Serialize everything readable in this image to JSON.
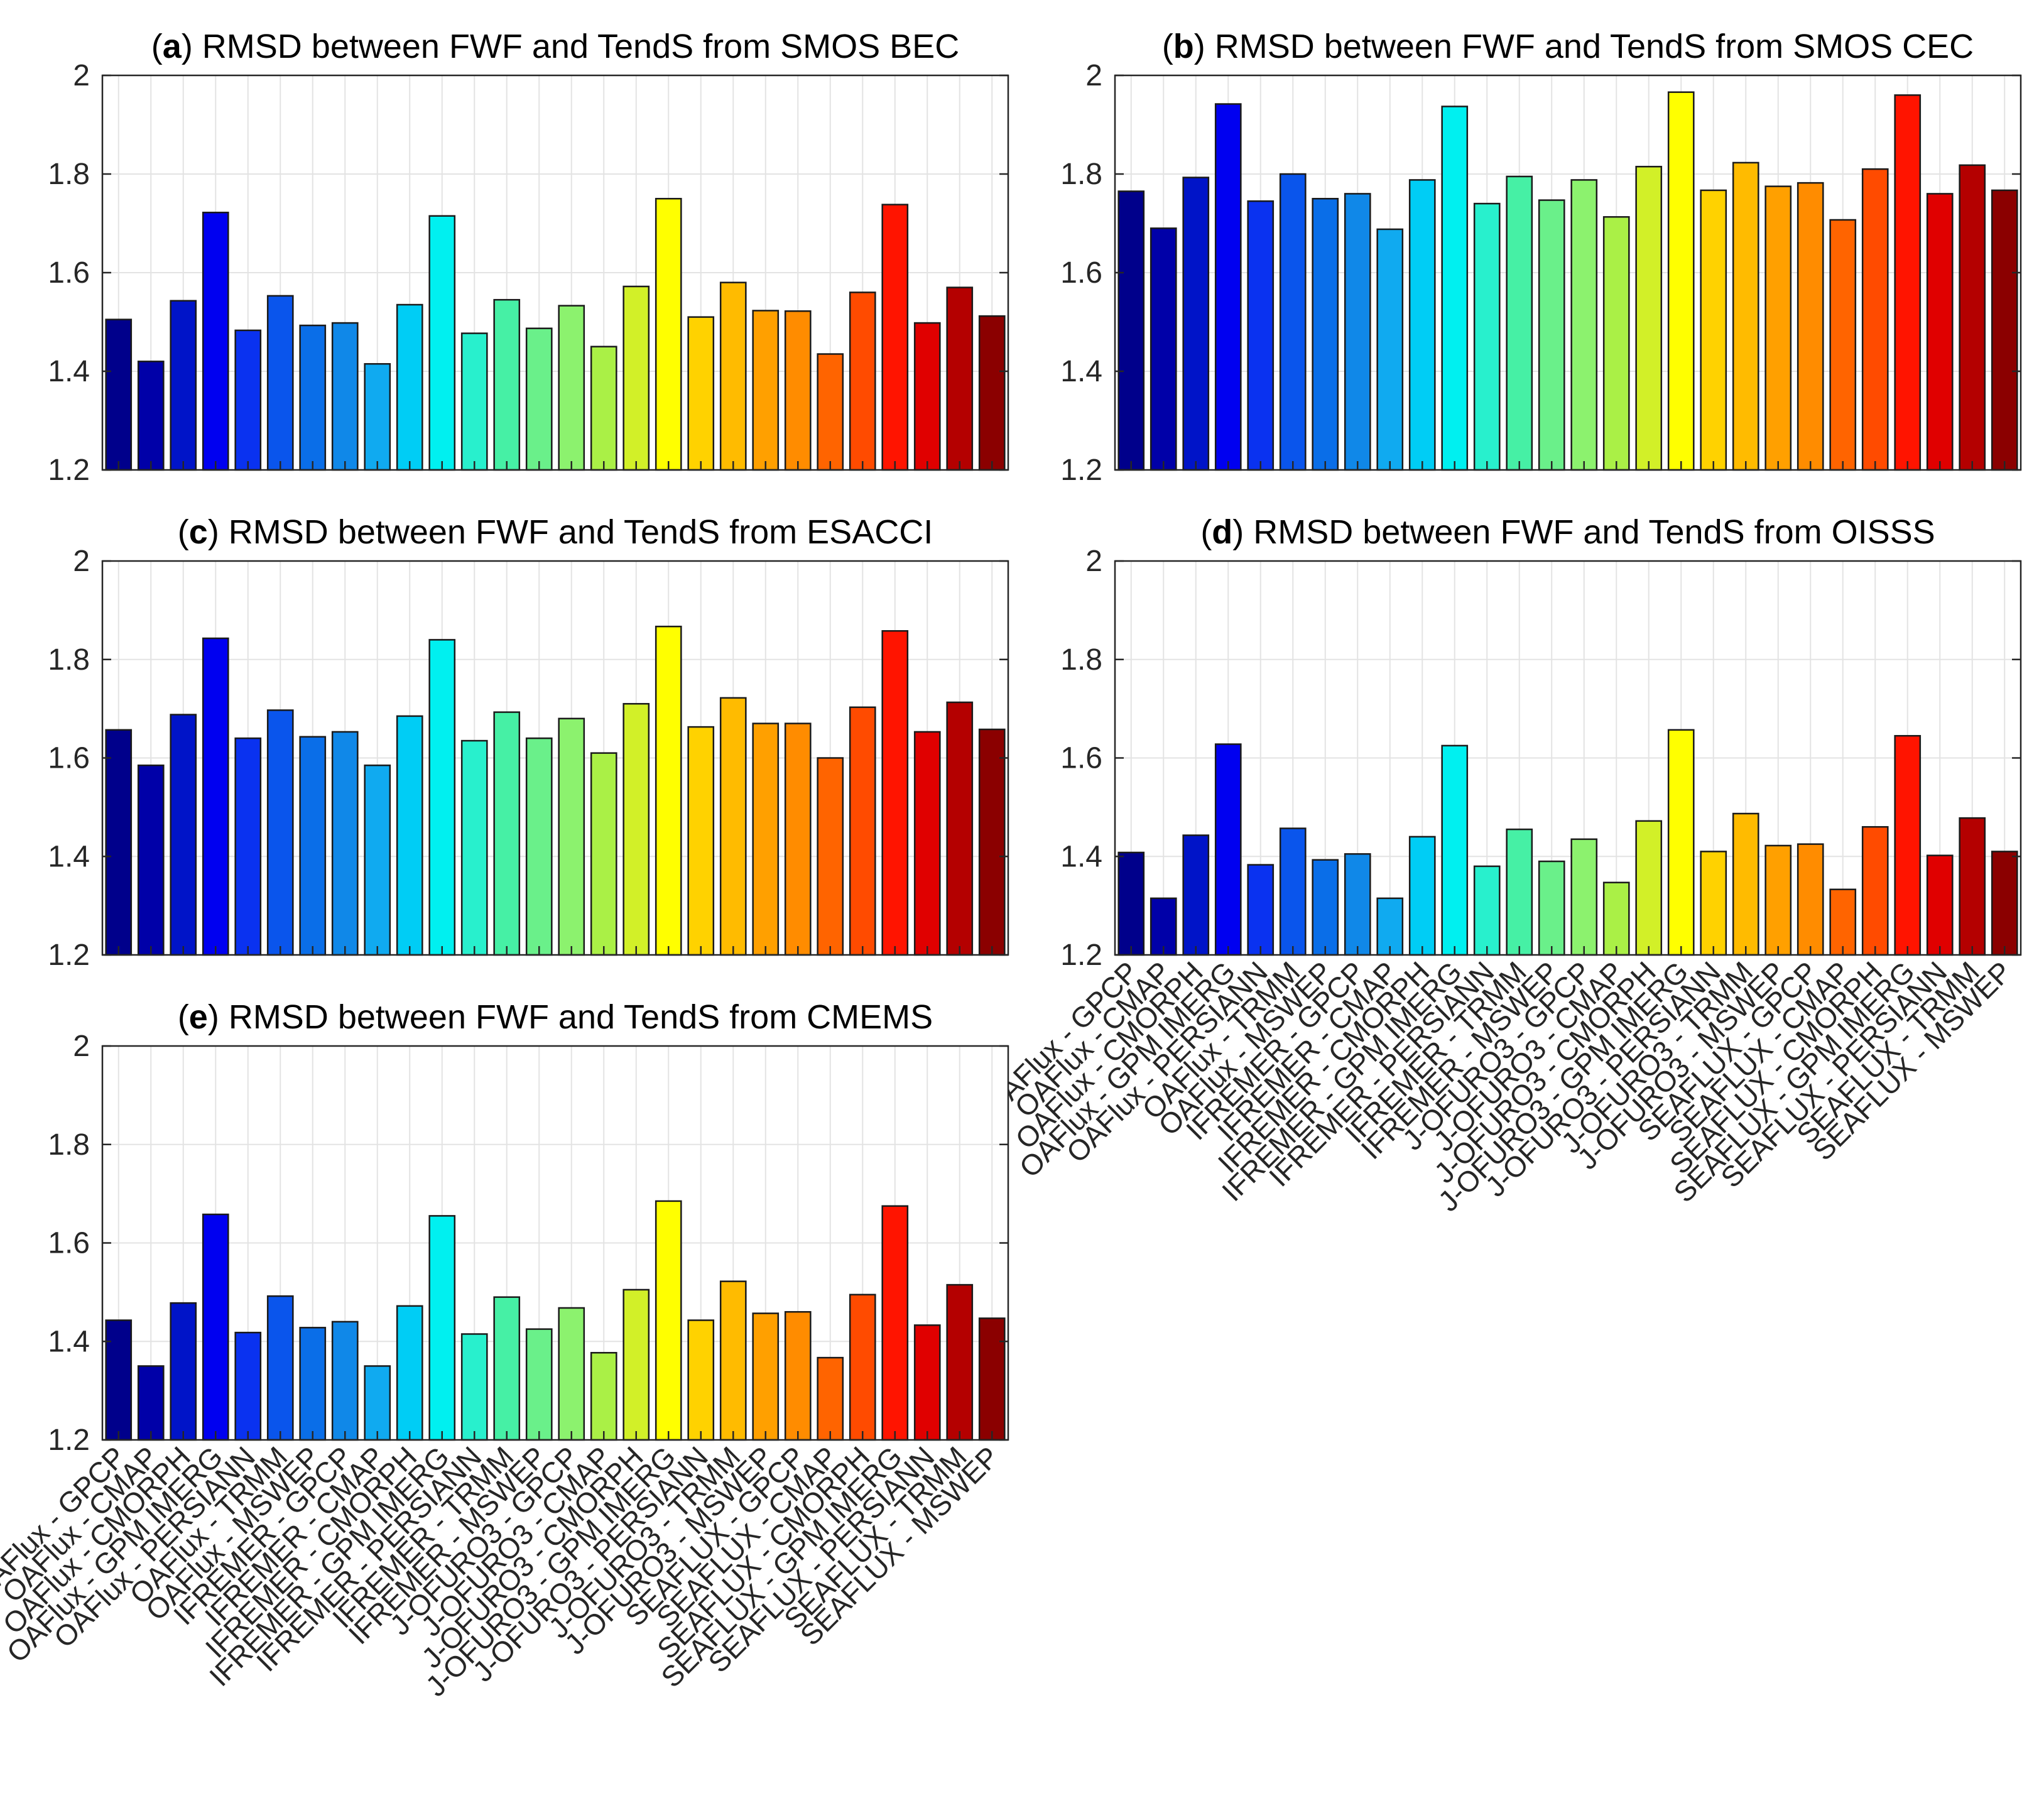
{
  "chart_data": [
    {
      "id": "a",
      "type": "bar",
      "title_prefix": "(",
      "title_letter": "a",
      "title_rest": ") RMSD between FWF and TendS from SMOS BEC",
      "ylim": [
        1.2,
        2
      ],
      "yticks": [
        "1.2",
        "1.4",
        "1.6",
        "1.8",
        "2"
      ],
      "grid": true,
      "show_xtick_labels": false,
      "values": [
        1.505,
        1.42,
        1.543,
        1.722,
        1.483,
        1.553,
        1.493,
        1.498,
        1.415,
        1.535,
        1.715,
        1.477,
        1.545,
        1.487,
        1.533,
        1.45,
        1.572,
        1.75,
        1.51,
        1.58,
        1.523,
        1.522,
        1.435,
        1.56,
        1.738,
        1.498,
        1.57,
        1.512
      ]
    },
    {
      "id": "b",
      "type": "bar",
      "title_prefix": "(",
      "title_letter": "b",
      "title_rest": ") RMSD between FWF and TendS from SMOS CEC",
      "ylim": [
        1.2,
        2
      ],
      "yticks": [
        "1.2",
        "1.4",
        "1.6",
        "1.8",
        "2"
      ],
      "grid": true,
      "show_xtick_labels": false,
      "values": [
        1.765,
        1.69,
        1.793,
        1.942,
        1.745,
        1.8,
        1.75,
        1.76,
        1.688,
        1.788,
        1.937,
        1.74,
        1.795,
        1.747,
        1.788,
        1.713,
        1.815,
        1.966,
        1.767,
        1.823,
        1.775,
        1.782,
        1.707,
        1.81,
        1.96,
        1.76,
        1.818,
        1.767
      ]
    },
    {
      "id": "c",
      "type": "bar",
      "title_prefix": "(",
      "title_letter": "c",
      "title_rest": ") RMSD between FWF and TendS from ESACCI",
      "ylim": [
        1.2,
        2
      ],
      "yticks": [
        "1.2",
        "1.4",
        "1.6",
        "1.8",
        "2"
      ],
      "grid": true,
      "show_xtick_labels": false,
      "values": [
        1.657,
        1.585,
        1.688,
        1.843,
        1.64,
        1.697,
        1.643,
        1.653,
        1.585,
        1.685,
        1.84,
        1.635,
        1.693,
        1.64,
        1.68,
        1.61,
        1.71,
        1.867,
        1.663,
        1.722,
        1.67,
        1.67,
        1.6,
        1.703,
        1.858,
        1.653,
        1.713,
        1.658
      ]
    },
    {
      "id": "d",
      "type": "bar",
      "title_prefix": "(",
      "title_letter": "d",
      "title_rest": ") RMSD between FWF and TendS from OISSS",
      "ylim": [
        1.2,
        2
      ],
      "yticks": [
        "1.2",
        "1.4",
        "1.6",
        "1.8",
        "2"
      ],
      "grid": true,
      "show_xtick_labels": true,
      "values": [
        1.408,
        1.315,
        1.443,
        1.628,
        1.383,
        1.457,
        1.393,
        1.405,
        1.315,
        1.44,
        1.625,
        1.38,
        1.455,
        1.39,
        1.435,
        1.347,
        1.472,
        1.657,
        1.41,
        1.487,
        1.422,
        1.425,
        1.333,
        1.46,
        1.645,
        1.402,
        1.478,
        1.41
      ]
    },
    {
      "id": "e",
      "type": "bar",
      "title_prefix": "(",
      "title_letter": "e",
      "title_rest": ") RMSD between FWF and TendS from CMEMS",
      "ylim": [
        1.2,
        2
      ],
      "yticks": [
        "1.2",
        "1.4",
        "1.6",
        "1.8",
        "2"
      ],
      "grid": true,
      "show_xtick_labels": true,
      "values": [
        1.443,
        1.35,
        1.478,
        1.658,
        1.418,
        1.492,
        1.428,
        1.44,
        1.35,
        1.472,
        1.655,
        1.415,
        1.49,
        1.425,
        1.468,
        1.377,
        1.505,
        1.685,
        1.443,
        1.522,
        1.457,
        1.46,
        1.367,
        1.495,
        1.675,
        1.433,
        1.515,
        1.447
      ]
    }
  ],
  "categories": [
    "OAFlux - GPCP",
    "OAFlux - CMAP",
    "OAFlux - CMORPH",
    "OAFlux - GPM IMERG",
    "OAFlux - PERSIANN",
    "OAFlux - TRMM",
    "OAFlux - MSWEP",
    "IFREMER - GPCP",
    "IFREMER - CMAP",
    "IFREMER - CMORPH",
    "IFREMER - GPM IMERG",
    "IFREMER - PERSIANN",
    "IFREMER - TRMM",
    "IFREMER - MSWEP",
    "J-OFURO3 - GPCP",
    "J-OFURO3 - CMAP",
    "J-OFURO3 - CMORPH",
    "J-OFURO3 - GPM IMERG",
    "J-OFURO3 - PERSIANN",
    "J-OFURO3 - TRMM",
    "J-OFURO3 - MSWEP",
    "SEAFLUX - GPCP",
    "SEAFLUX - CMAP",
    "SEAFLUX - CMORPH",
    "SEAFLUX - GPM IMERG",
    "SEAFLUX - PERSIANN",
    "SEAFLUX - TRMM",
    "SEAFLUX - MSWEP"
  ],
  "bar_colors": [
    "#00008b",
    "#0000a8",
    "#0014c8",
    "#0000f0",
    "#0a32f0",
    "#0a55ec",
    "#0a6ee8",
    "#1088e8",
    "#10aaf0",
    "#00cdf5",
    "#00f0f0",
    "#28f0cd",
    "#46f0a5",
    "#6af08a",
    "#8cf26e",
    "#aaf046",
    "#d2f028",
    "#ffff00",
    "#ffd200",
    "#ffbb00",
    "#ffa000",
    "#ff8c00",
    "#ff6400",
    "#ff4b00",
    "#ff1400",
    "#e00000",
    "#b40000",
    "#8b0000"
  ]
}
